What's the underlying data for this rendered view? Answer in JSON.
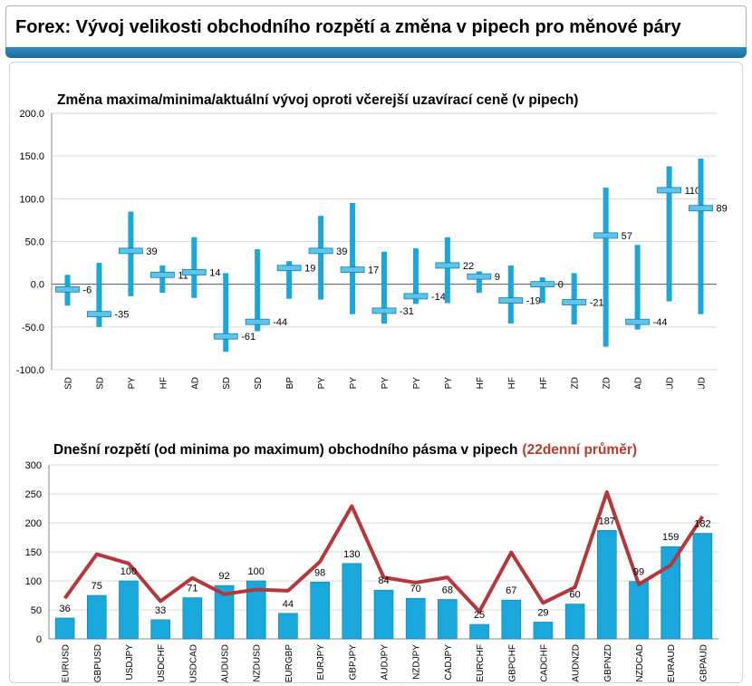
{
  "header": {
    "title": "Forex: Vývoj velikosti obchodního rozpětí a změna v pipech pro měnové páry"
  },
  "colors": {
    "bar": "#19a7dc",
    "bar_dark": "#0e7fb0",
    "line": "#b5373a",
    "title_accent": "#c0392b",
    "header_bar": "#2279ab"
  },
  "chart_data": [
    {
      "type": "range",
      "title": "Změna maxima/minima/aktuální vývoj oproti včerejší uzavírací ceně (v pipech)",
      "xlabel": "",
      "ylabel": "",
      "ylim": [
        -100,
        200
      ],
      "yticks": [
        "-100.0",
        "-50.0",
        "0.0",
        "50.0",
        "100.0",
        "150.0",
        "200.0"
      ],
      "categories": [
        "EURUSD",
        "GBPUSD",
        "USDJPY",
        "USDCHF",
        "USDCAD",
        "AUDUSD",
        "NZDUSD",
        "EURGBP",
        "EURJPY",
        "GBPJPY",
        "AUDJPY",
        "NZDJPY",
        "CADJPY",
        "EURCHF",
        "GBPCHF",
        "CADCHF",
        "AUDNZD",
        "GBPNZD",
        "NZDCAD",
        "EURAUD",
        "GBPAUD"
      ],
      "high": [
        11,
        25,
        85,
        22,
        55,
        13,
        41,
        27,
        80,
        95,
        38,
        42,
        55,
        15,
        22,
        8,
        13,
        113,
        46,
        138,
        147
      ],
      "low": [
        -25,
        -50,
        -14,
        -10,
        -16,
        -79,
        -55,
        -17,
        -18,
        -35,
        -46,
        -23,
        -22,
        -10,
        -46,
        -22,
        -47,
        -73,
        -53,
        -20,
        -35
      ],
      "current": [
        -6,
        -35,
        39,
        11,
        14,
        -61,
        -44,
        19,
        39,
        17,
        -31,
        -14,
        22,
        9,
        -19,
        0,
        -21,
        57,
        -44,
        110,
        89
      ],
      "current_labels": [
        "-6",
        "-35",
        "39",
        "11",
        "14",
        "-61",
        "-44",
        "19",
        "39",
        "17",
        "-31",
        "-14",
        "22",
        "9",
        "-19",
        "0",
        "-21",
        "57",
        "-44",
        "110",
        "89"
      ]
    },
    {
      "type": "bar+line",
      "title": "Dnešní rozpětí (od minima po maximum) obchodního pásma v pipech",
      "title_suffix": "(22denní průměr)",
      "xlabel": "",
      "ylabel": "",
      "ylim": [
        0,
        300
      ],
      "yticks": [
        "0",
        "50",
        "100",
        "150",
        "200",
        "250",
        "300"
      ],
      "categories": [
        "EURUSD",
        "GBPUSD",
        "USDJPY",
        "USDCHF",
        "USDCAD",
        "AUDUSD",
        "NZDUSD",
        "EURGBP",
        "EURJPY",
        "GBPJPY",
        "AUDJPY",
        "NZDJPY",
        "CADJPY",
        "EURCHF",
        "GBPCHF",
        "CADCHF",
        "AUDNZD",
        "GBPNZD",
        "NZDCAD",
        "EURAUD",
        "GBPAUD"
      ],
      "values": [
        36,
        75,
        100,
        33,
        71,
        92,
        100,
        44,
        98,
        130,
        84,
        70,
        68,
        25,
        67,
        29,
        60,
        187,
        99,
        159,
        182
      ],
      "value_labels": [
        "36",
        "75",
        "100",
        "33",
        "71",
        "92",
        "100",
        "44",
        "98",
        "130",
        "84",
        "70",
        "68",
        "25",
        "67",
        "29",
        "60",
        "187",
        "99",
        "159",
        "182"
      ],
      "average": [
        70,
        146,
        130,
        65,
        105,
        77,
        85,
        83,
        133,
        229,
        106,
        97,
        106,
        47,
        149,
        62,
        89,
        253,
        94,
        127,
        211
      ]
    }
  ]
}
